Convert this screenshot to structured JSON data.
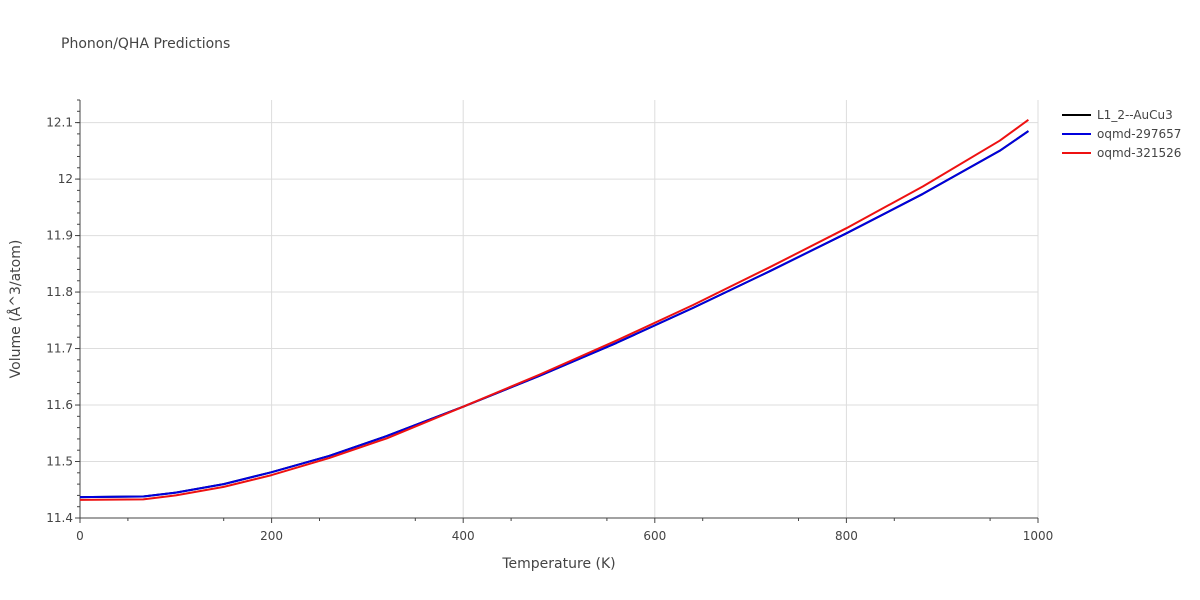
{
  "chart_data": {
    "type": "line",
    "title": "Phonon/QHA Predictions",
    "xlabel": "Temperature (K)",
    "ylabel": "Volume (Å^3/atom)",
    "xlim": [
      0,
      1000
    ],
    "ylim": [
      11.4,
      12.14
    ],
    "xticks": [
      "0",
      "200",
      "400",
      "600",
      "800",
      "1000"
    ],
    "yticks": [
      "11.4",
      "11.5",
      "11.6",
      "11.7",
      "11.8",
      "11.9",
      "12",
      "12.1"
    ],
    "grid": true,
    "legend_position": "top-right",
    "series": [
      {
        "name": "L1_2--AuCu3",
        "color": "#000000",
        "x": [
          0,
          66,
          100,
          150,
          200,
          260,
          320,
          400,
          480,
          560,
          640,
          720,
          800,
          880,
          960,
          990
        ],
        "y": [
          11.437,
          11.438,
          11.445,
          11.46,
          11.481,
          11.51,
          11.545,
          11.597,
          11.652,
          11.71,
          11.772,
          11.837,
          11.904,
          11.974,
          12.05,
          12.085
        ]
      },
      {
        "name": "oqmd-297657",
        "color": "#0000dd",
        "x": [
          0,
          66,
          100,
          150,
          200,
          260,
          320,
          400,
          480,
          560,
          640,
          720,
          800,
          880,
          960,
          990
        ],
        "y": [
          11.437,
          11.438,
          11.445,
          11.46,
          11.481,
          11.51,
          11.545,
          11.597,
          11.652,
          11.71,
          11.772,
          11.837,
          11.904,
          11.974,
          12.05,
          12.085
        ]
      },
      {
        "name": "oqmd-321526",
        "color": "#ee1111",
        "x": [
          0,
          66,
          100,
          150,
          200,
          260,
          320,
          400,
          480,
          560,
          640,
          720,
          800,
          880,
          960,
          990
        ],
        "y": [
          11.432,
          11.433,
          11.44,
          11.455,
          11.476,
          11.506,
          11.541,
          11.597,
          11.654,
          11.714,
          11.777,
          11.844,
          11.913,
          11.987,
          12.068,
          12.105
        ]
      }
    ]
  }
}
